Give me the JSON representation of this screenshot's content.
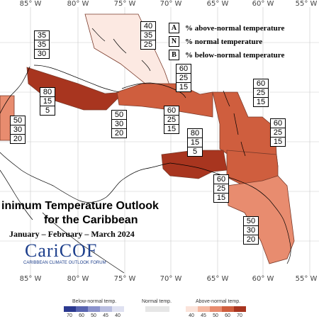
{
  "title_line1": "inimum Temperature Outlook",
  "title_line2": "for the Caribbean",
  "subtitle": "January – February – March 2024",
  "logo": {
    "name": "CariCOF",
    "tagline": "CARIBBEAN CLIMATE OUTLOOK FORUM"
  },
  "legend": [
    {
      "key": "A",
      "text": "% above-normal temperature"
    },
    {
      "key": "N",
      "text": "% normal temperature"
    },
    {
      "key": "B",
      "text": "% below-normal temperature"
    }
  ],
  "longitudes_top": [
    "85° W",
    "80° W",
    "75° W",
    "70° W",
    "65° W",
    "60° W",
    "55° W"
  ],
  "longitudes_bottom": [
    "85° W",
    "80° W",
    "75° W",
    "70° W",
    "65° W",
    "60° W",
    "55° W"
  ],
  "regions": [
    {
      "id": "bahamas",
      "above": "40",
      "normal": "35",
      "below": "25",
      "fill": "#fce9e2"
    },
    {
      "id": "cuba-west",
      "above": "35",
      "normal": "35",
      "below": "30",
      "fill": "#ffffff"
    },
    {
      "id": "cuba-jamaica",
      "above": "80",
      "normal": "15",
      "below": "5",
      "fill": "#a8351f"
    },
    {
      "id": "belize",
      "above": "50",
      "normal": "30",
      "below": "20",
      "fill": "#e88c6f"
    },
    {
      "id": "caribbean-sea-central",
      "above": "50",
      "normal": "30",
      "below": "20",
      "fill": "#ffffff"
    },
    {
      "id": "hispaniola-north",
      "above": "60",
      "normal": "25",
      "below": "15",
      "fill": "#cf5e3e"
    },
    {
      "id": "hispaniola",
      "above": "60",
      "normal": "25",
      "below": "15",
      "fill": "#cf5e3e"
    },
    {
      "id": "lesser-antilles-north",
      "above": "60",
      "normal": "25",
      "below": "15",
      "fill": "#cf5e3e"
    },
    {
      "id": "lesser-antilles-east",
      "above": "60",
      "normal": "25",
      "below": "15",
      "fill": "#cf5e3e"
    },
    {
      "id": "abc-islands",
      "above": "80",
      "normal": "15",
      "below": "5",
      "fill": "#a8351f"
    },
    {
      "id": "trinidad",
      "above": "60",
      "normal": "25",
      "below": "15",
      "fill": "#cf5e3e"
    },
    {
      "id": "guianas",
      "above": "50",
      "normal": "30",
      "below": "20",
      "fill": "#e88c6f"
    }
  ],
  "colorbar": {
    "below_label": "Below-normal temp.",
    "normal_label": "Normal temp.",
    "above_label": "Above-normal temp.",
    "below_ticks": [
      "70",
      "60",
      "50",
      "45",
      "40"
    ],
    "above_ticks": [
      "40",
      "45",
      "50",
      "60",
      "70"
    ],
    "below_colors": [
      "#2b3990",
      "#5864b0",
      "#8b93cc",
      "#b9bee0",
      "#dfe1f1"
    ],
    "normal_color": "#e6e6e6",
    "above_colors": [
      "#fbe3da",
      "#f5b9a3",
      "#e88c6f",
      "#cf5e3e",
      "#a8351f"
    ]
  }
}
